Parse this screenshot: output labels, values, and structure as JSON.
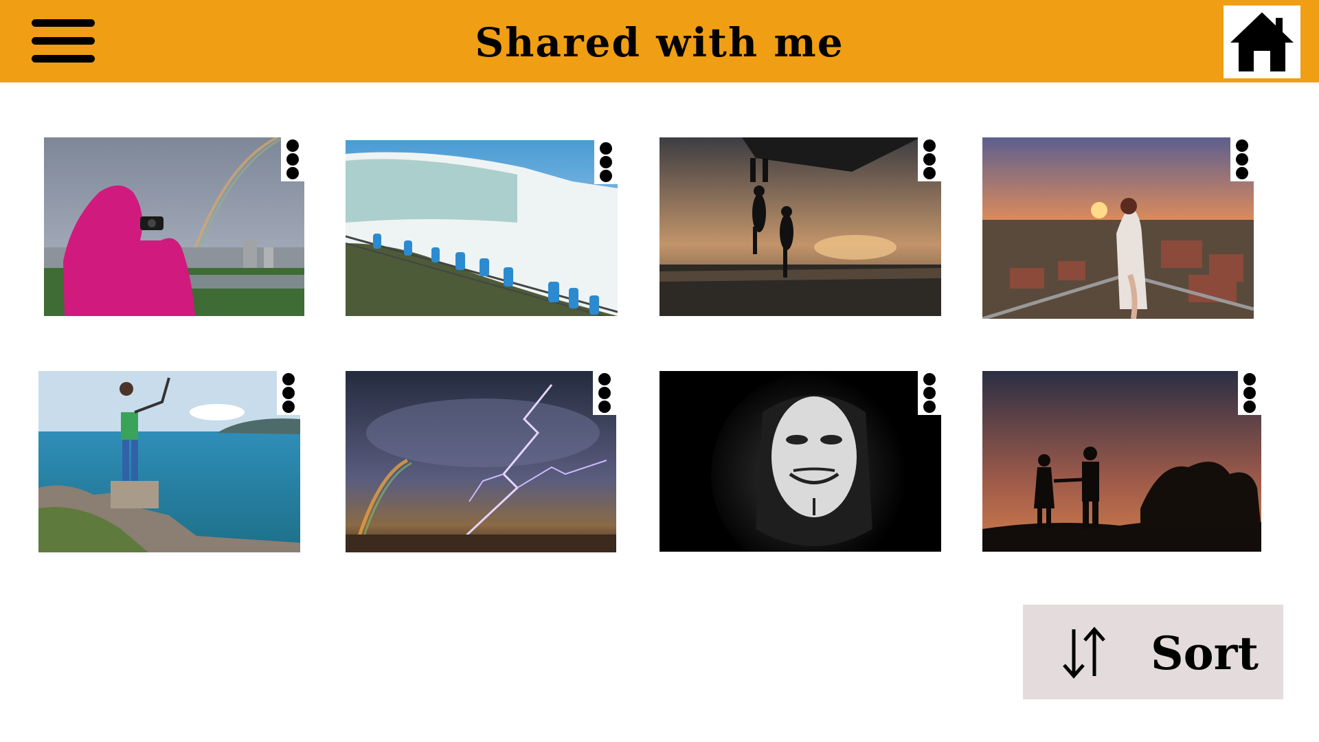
{
  "header": {
    "title": "Shared with me",
    "menu_icon": "hamburger-menu-icon",
    "home_icon": "home-icon",
    "background_color": "#f09e13"
  },
  "gallery": {
    "items": [
      {
        "subject": "person in pink raincoat photographing a rainbow",
        "menu_icon": "more-vertical-icon"
      },
      {
        "subject": "tourists in blue ponchos on stairs beside waterfall",
        "menu_icon": "more-vertical-icon"
      },
      {
        "subject": "silhouettes jumping into water at sunset",
        "menu_icon": "more-vertical-icon"
      },
      {
        "subject": "woman at viewpoint over rooftops at sunset",
        "menu_icon": "more-vertical-icon"
      },
      {
        "subject": "hiker taking selfie on cliff above turquoise sea",
        "menu_icon": "more-vertical-icon"
      },
      {
        "subject": "lightning and rainbow in stormy sky",
        "menu_icon": "more-vertical-icon"
      },
      {
        "subject": "hooded figure in mask on black background",
        "menu_icon": "more-vertical-icon"
      },
      {
        "subject": "couple silhouette holding hands at dusk",
        "menu_icon": "more-vertical-icon"
      }
    ]
  },
  "sort": {
    "label": "Sort",
    "icon": "sort-arrows-icon",
    "background_color": "#e4dcdc"
  }
}
